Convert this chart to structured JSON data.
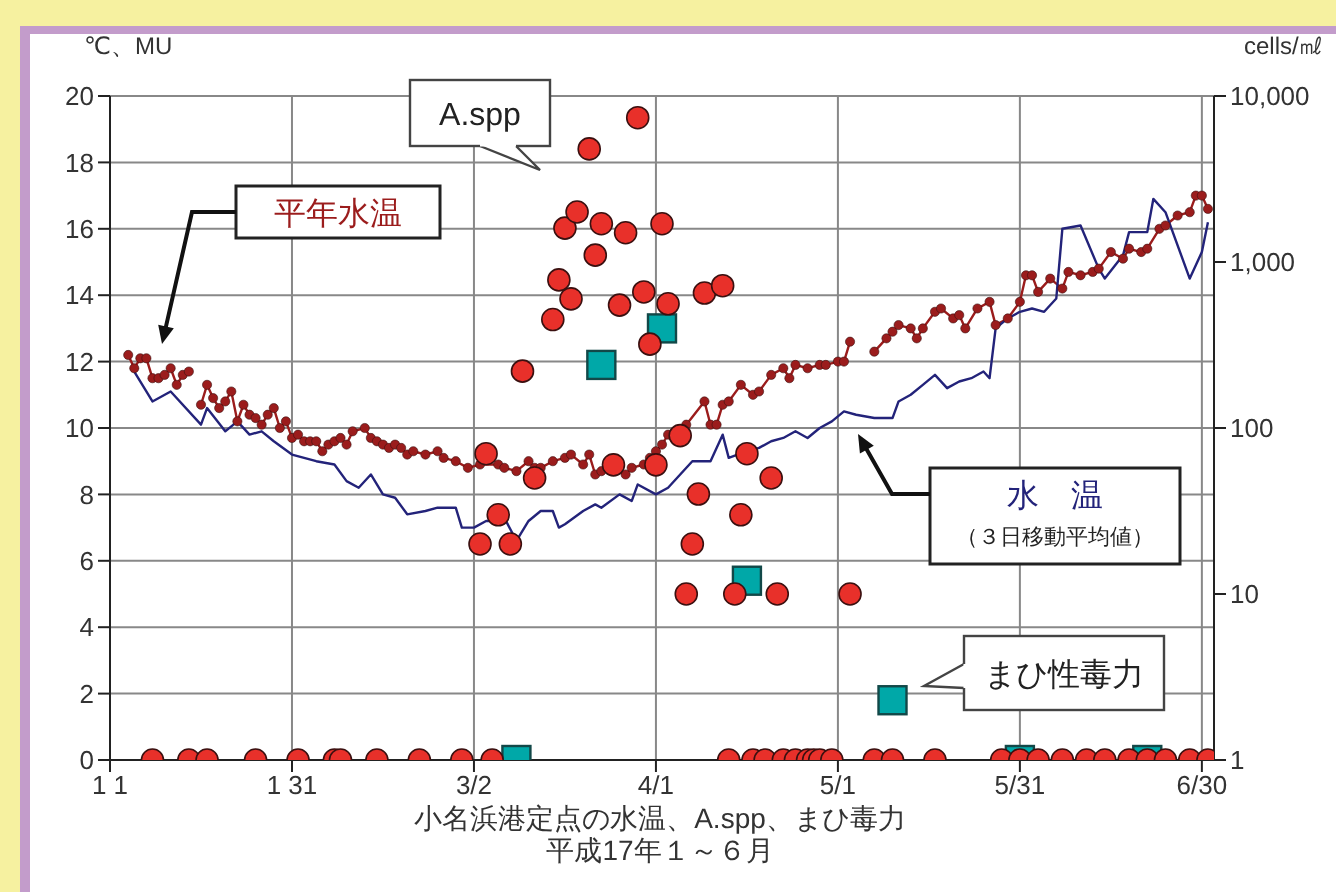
{
  "chart_data": {
    "type": "line",
    "xlabel": "小名浜港定点の水温、A.spp、まひ毒力",
    "annotations": [
      "平成17年１～６月",
      "（３日移動平均値）"
    ],
    "ylabel": "℃、MU",
    "y2label": "cells/㎖",
    "xlim": [
      "--01-01",
      "--07-02"
    ],
    "xticks": [
      {
        "value": "--01-01",
        "label": "1 1"
      },
      {
        "value": "--01-31",
        "label": "1 31"
      },
      {
        "value": "--03-02",
        "label": "3/2"
      },
      {
        "value": "--04-01",
        "label": "4/1"
      },
      {
        "value": "--05-01",
        "label": "5/1"
      },
      {
        "value": "--05-31",
        "label": "5/31"
      },
      {
        "value": "--06-30",
        "label": "6/30"
      }
    ],
    "ylim": [
      0,
      20
    ],
    "yticks": [
      0,
      2,
      4,
      6,
      8,
      10,
      12,
      14,
      16,
      18,
      20
    ],
    "y2lim": [
      1,
      10000
    ],
    "y2ticks": [
      1,
      10,
      100,
      {
        "value": 1000,
        "label": "1,000"
      },
      {
        "value": 10000,
        "label": "10,000"
      }
    ],
    "log": "y2",
    "grid": true,
    "series": [
      {
        "name": "平年水温",
        "color": "#9b1c1c",
        "marker": "circle",
        "line_style": "solid",
        "x": [
          "--01-04",
          "--01-05",
          "--01-06",
          "--01-07",
          "--01-08",
          "--01-09",
          "--01-10",
          "--01-11",
          "--01-12",
          "--01-13",
          "--01-14",
          "--01-15",
          "--01-16",
          "--01-17",
          "--01-18",
          "--01-19",
          "--01-20",
          "--01-21",
          "--01-22",
          "--01-23",
          "--01-24",
          "--01-25",
          "--01-26",
          "--01-27",
          "--01-28",
          "--01-29",
          "--01-30",
          "--01-31",
          "--02-01",
          "--02-02",
          "--02-03",
          "--02-04",
          "--02-05",
          "--02-06",
          "--02-07",
          "--02-08",
          "--02-09",
          "--02-10",
          "--02-12",
          "--02-13",
          "--02-14",
          "--02-15",
          "--02-16",
          "--02-17",
          "--02-18",
          "--02-19",
          "--02-20",
          "--02-22",
          "--02-24",
          "--02-25",
          "--02-27",
          "--03-01",
          "--03-03",
          "--03-06",
          "--03-07",
          "--03-09",
          "--03-11",
          "--03-12",
          "--03-13",
          "--03-15",
          "--03-17",
          "--03-18",
          "--03-20",
          "--03-21",
          "--03-22",
          "--03-23",
          "--03-24",
          "--03-27",
          "--03-28",
          "--03-30",
          "--03-31",
          "--04-01",
          "--04-02",
          "--04-03",
          "--04-06",
          "--04-09",
          "--04-10",
          "--04-11",
          "--04-12",
          "--04-13",
          "--04-15",
          "--04-17",
          "--04-18",
          "--04-20",
          "--04-22",
          "--04-23",
          "--04-24",
          "--04-26",
          "--04-28",
          "--04-29",
          "--05-01",
          "--05-02",
          "--05-03",
          "--05-05",
          "--05-07",
          "--05-09",
          "--05-10",
          "--05-11",
          "--05-13",
          "--05-14",
          "--05-15",
          "--05-17",
          "--05-18",
          "--05-20",
          "--05-21",
          "--05-22",
          "--05-24",
          "--05-26",
          "--05-27",
          "--05-29",
          "--05-31",
          "--06-01",
          "--06-02",
          "--06-03",
          "--06-05",
          "--06-07",
          "--06-08",
          "--06-10",
          "--06-12",
          "--06-13",
          "--06-15",
          "--06-17",
          "--06-18",
          "--06-20",
          "--06-21",
          "--06-23",
          "--06-24",
          "--06-26",
          "--06-28",
          "--06-29",
          "--06-30",
          "--07-01"
        ],
        "values": [
          12.2,
          11.8,
          12.1,
          12.1,
          11.5,
          11.5,
          11.6,
          11.8,
          11.3,
          11.6,
          11.7,
          null,
          10.7,
          11.3,
          10.9,
          10.6,
          10.8,
          11.1,
          10.2,
          10.7,
          10.4,
          10.3,
          10.1,
          10.4,
          10.6,
          10.0,
          10.2,
          9.7,
          9.8,
          9.6,
          9.6,
          9.6,
          9.3,
          9.5,
          9.6,
          9.7,
          9.5,
          9.9,
          10.0,
          9.7,
          9.6,
          9.5,
          9.4,
          9.5,
          9.4,
          9.2,
          9.3,
          9.2,
          9.3,
          9.1,
          9.0,
          8.8,
          8.9,
          8.9,
          8.8,
          8.7,
          9.0,
          8.8,
          8.8,
          9.0,
          9.1,
          9.2,
          8.9,
          9.2,
          8.6,
          8.7,
          8.8,
          8.6,
          8.8,
          8.9,
          9.1,
          9.3,
          9.5,
          9.8,
          10.1,
          10.8,
          10.1,
          10.1,
          10.7,
          10.8,
          11.3,
          11.0,
          11.1,
          11.6,
          11.8,
          11.5,
          11.9,
          11.8,
          11.9,
          11.9,
          12.0,
          12.0,
          12.6,
          null,
          12.3,
          12.7,
          12.9,
          13.1,
          13.0,
          12.7,
          13.0,
          13.5,
          13.6,
          13.3,
          13.4,
          13.0,
          13.6,
          13.8,
          13.1,
          13.3,
          13.8,
          14.6,
          14.6,
          14.1,
          14.5,
          14.2,
          14.7,
          14.6,
          14.7,
          14.8,
          15.3,
          15.1,
          15.4,
          15.3,
          15.4,
          16.0,
          16.1,
          16.4,
          16.5,
          17.0,
          17.0,
          16.6
        ]
      },
      {
        "name": "水　温",
        "color": "#23237a",
        "marker": "none",
        "line_style": "solid",
        "x": [
          "--01-05",
          "--01-08",
          "--01-11",
          "--01-16",
          "--01-17",
          "--01-20",
          "--01-22",
          "--01-24",
          "--01-26",
          "--01-28",
          "--01-31",
          "--02-04",
          "--02-07",
          "--02-09",
          "--02-11",
          "--02-13",
          "--02-15",
          "--02-17",
          "--02-19",
          "--02-22",
          "--02-24",
          "--02-27",
          "--02-28",
          "--03-02",
          "--03-04",
          "--03-06",
          "--03-07",
          "--03-09",
          "--03-11",
          "--03-13",
          "--03-15",
          "--03-16",
          "--03-17",
          "--03-20",
          "--03-22",
          "--03-23",
          "--03-26",
          "--03-28",
          "--03-29",
          "--04-01",
          "--04-03",
          "--04-05",
          "--04-07",
          "--04-10",
          "--04-12",
          "--04-13",
          "--04-16",
          "--04-18",
          "--04-20",
          "--04-22",
          "--04-24",
          "--04-26",
          "--04-28",
          "--04-30",
          "--05-02",
          "--05-04",
          "--05-07",
          "--05-10",
          "--05-11",
          "--05-13",
          "--05-15",
          "--05-17",
          "--05-19",
          "--05-21",
          "--05-23",
          "--05-25",
          "--05-26",
          "--05-27",
          "--05-29",
          "--05-31",
          "--06-02",
          "--06-04",
          "--06-06",
          "--06-07",
          "--06-10",
          "--06-13",
          "--06-14",
          "--06-17",
          "--06-18",
          "--06-21",
          "--06-22",
          "--06-24",
          "--06-28",
          "--06-30",
          "--07-01"
        ],
        "values": [
          11.7,
          10.8,
          11.1,
          10.1,
          10.6,
          9.9,
          10.2,
          9.8,
          9.9,
          9.6,
          9.2,
          9.0,
          8.9,
          8.4,
          8.2,
          8.6,
          8.0,
          7.9,
          7.4,
          7.5,
          7.6,
          7.6,
          7.0,
          7.0,
          7.2,
          7.2,
          7.3,
          6.6,
          7.2,
          7.5,
          7.5,
          7.0,
          7.1,
          7.5,
          7.7,
          7.6,
          8.0,
          7.8,
          8.3,
          8.0,
          8.2,
          8.6,
          9.0,
          9.0,
          9.8,
          9.1,
          9.3,
          9.4,
          9.6,
          9.7,
          9.9,
          9.7,
          10.0,
          10.2,
          10.5,
          10.4,
          10.3,
          10.3,
          10.8,
          11.0,
          11.3,
          11.6,
          11.2,
          11.4,
          11.5,
          11.7,
          11.5,
          13.0,
          13.3,
          13.5,
          13.6,
          13.5,
          13.9,
          16.0,
          16.1,
          14.8,
          14.5,
          15.2,
          15.9,
          15.9,
          16.9,
          16.5,
          14.5,
          15.3,
          16.2
        ]
      },
      {
        "name": "A.spp",
        "type": "scatter",
        "axis": "y2",
        "color": "#e8302a",
        "marker": "circle",
        "x": [
          "--01-08",
          "--01-14",
          "--01-17",
          "--01-25",
          "--02-01",
          "--02-07",
          "--02-08",
          "--02-14",
          "--02-21",
          "--02-28",
          "--03-03",
          "--03-04",
          "--03-05",
          "--03-06",
          "--03-08",
          "--03-10",
          "--03-12",
          "--03-15",
          "--03-16",
          "--03-17",
          "--03-18",
          "--03-19",
          "--03-21",
          "--03-22",
          "--03-23",
          "--03-25",
          "--03-26",
          "--03-27",
          "--03-29",
          "--03-30",
          "--03-31",
          "--04-01",
          "--04-02",
          "--04-03",
          "--04-05",
          "--04-06",
          "--04-07",
          "--04-08",
          "--04-09",
          "--04-12",
          "--04-13",
          "--04-14",
          "--04-15",
          "--04-16",
          "--04-17",
          "--04-19",
          "--04-20",
          "--04-21",
          "--04-22",
          "--04-24",
          "--04-26",
          "--04-27",
          "--04-28",
          "--04-30",
          "--05-03",
          "--05-07",
          "--05-10",
          "--05-17",
          "--05-28",
          "--05-31",
          "--06-03",
          "--06-07",
          "--06-11",
          "--06-14",
          "--06-18",
          "--06-21",
          "--06-24",
          "--06-28",
          "--07-01"
        ],
        "values": [
          1,
          1,
          1,
          1,
          1,
          1,
          1,
          1,
          1,
          1,
          20,
          70,
          1,
          30,
          20,
          220,
          50,
          450,
          780,
          1600,
          600,
          2000,
          4800,
          1100,
          1700,
          60,
          550,
          1500,
          7400,
          660,
          320,
          60,
          1700,
          560,
          90,
          10,
          20,
          40,
          650,
          720,
          1,
          10,
          30,
          70,
          1,
          1,
          50,
          10,
          1,
          1,
          1,
          1,
          1,
          1,
          10,
          1,
          1,
          1,
          1,
          1,
          1,
          1,
          1,
          1,
          1,
          1,
          1,
          1,
          1
        ]
      },
      {
        "name": "まひ性毒力",
        "type": "scatter",
        "color": "#00a8a8",
        "marker": "square",
        "x": [
          "--03-09",
          "--03-23",
          "--04-02",
          "--04-16",
          "--05-10",
          "--05-31",
          "--06-21"
        ],
        "values": [
          0,
          11.9,
          13.0,
          5.4,
          1.8,
          0,
          0
        ]
      }
    ]
  }
}
